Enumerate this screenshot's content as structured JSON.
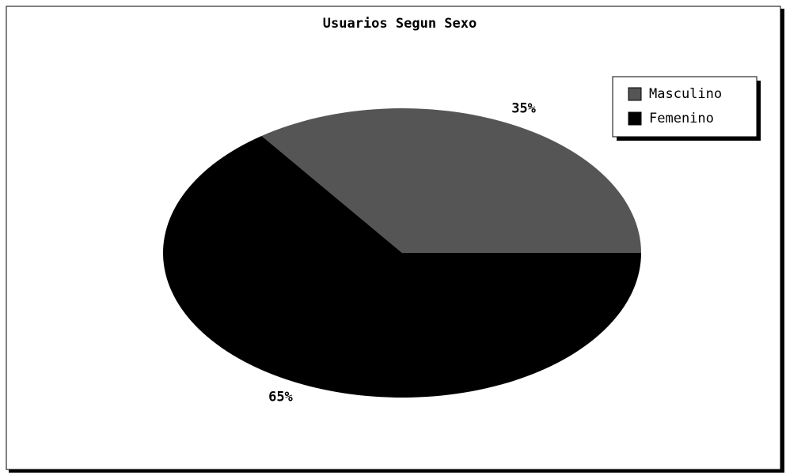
{
  "chart_data": {
    "type": "pie",
    "title": "Usuarios Segun Sexo",
    "categories": [
      "Masculino",
      "Femenino"
    ],
    "values": [
      35,
      65
    ],
    "value_labels": [
      "35%",
      "65%"
    ],
    "colors": [
      "#555555",
      "#000000"
    ],
    "legend": "upper right"
  }
}
